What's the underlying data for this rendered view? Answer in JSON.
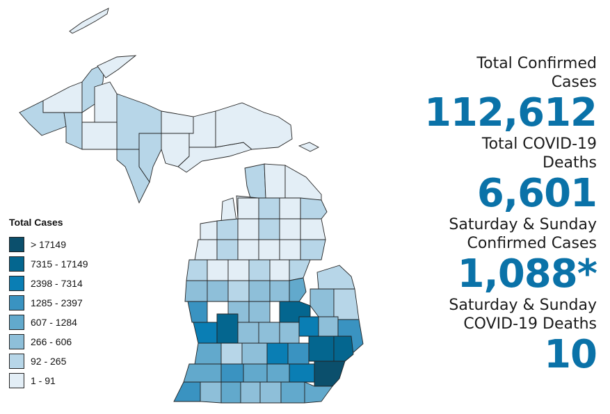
{
  "legend": {
    "title": "Total Cases",
    "bins": [
      {
        "label": "> 17149",
        "color": "#0b4f6c"
      },
      {
        "label": "7315 - 17149",
        "color": "#04668f"
      },
      {
        "label": "2398 - 7314",
        "color": "#0a7eb4"
      },
      {
        "label": "1285 - 2397",
        "color": "#3a93c1"
      },
      {
        "label": "607 - 1284",
        "color": "#62a9cc"
      },
      {
        "label": "266 - 606",
        "color": "#8ebfd9"
      },
      {
        "label": "92 - 265",
        "color": "#b7d6e8"
      },
      {
        "label": "1 - 91",
        "color": "#e3eef6"
      }
    ]
  },
  "stats": [
    {
      "label_lines": [
        "Total Confirmed",
        "Cases"
      ],
      "value": "112,612",
      "color": "#0a72a8"
    },
    {
      "label_lines": [
        "Total COVID-19",
        "Deaths"
      ],
      "value": "6,601",
      "color": "#0a72a8"
    },
    {
      "label_lines": [
        "Saturday & Sunday",
        "Confirmed Cases"
      ],
      "value": "1,088*",
      "color": "#0a72a8"
    },
    {
      "label_lines": [
        "Saturday & Sunday",
        "COVID-19 Deaths"
      ],
      "value": "10",
      "color": "#0a72a8"
    }
  ]
}
